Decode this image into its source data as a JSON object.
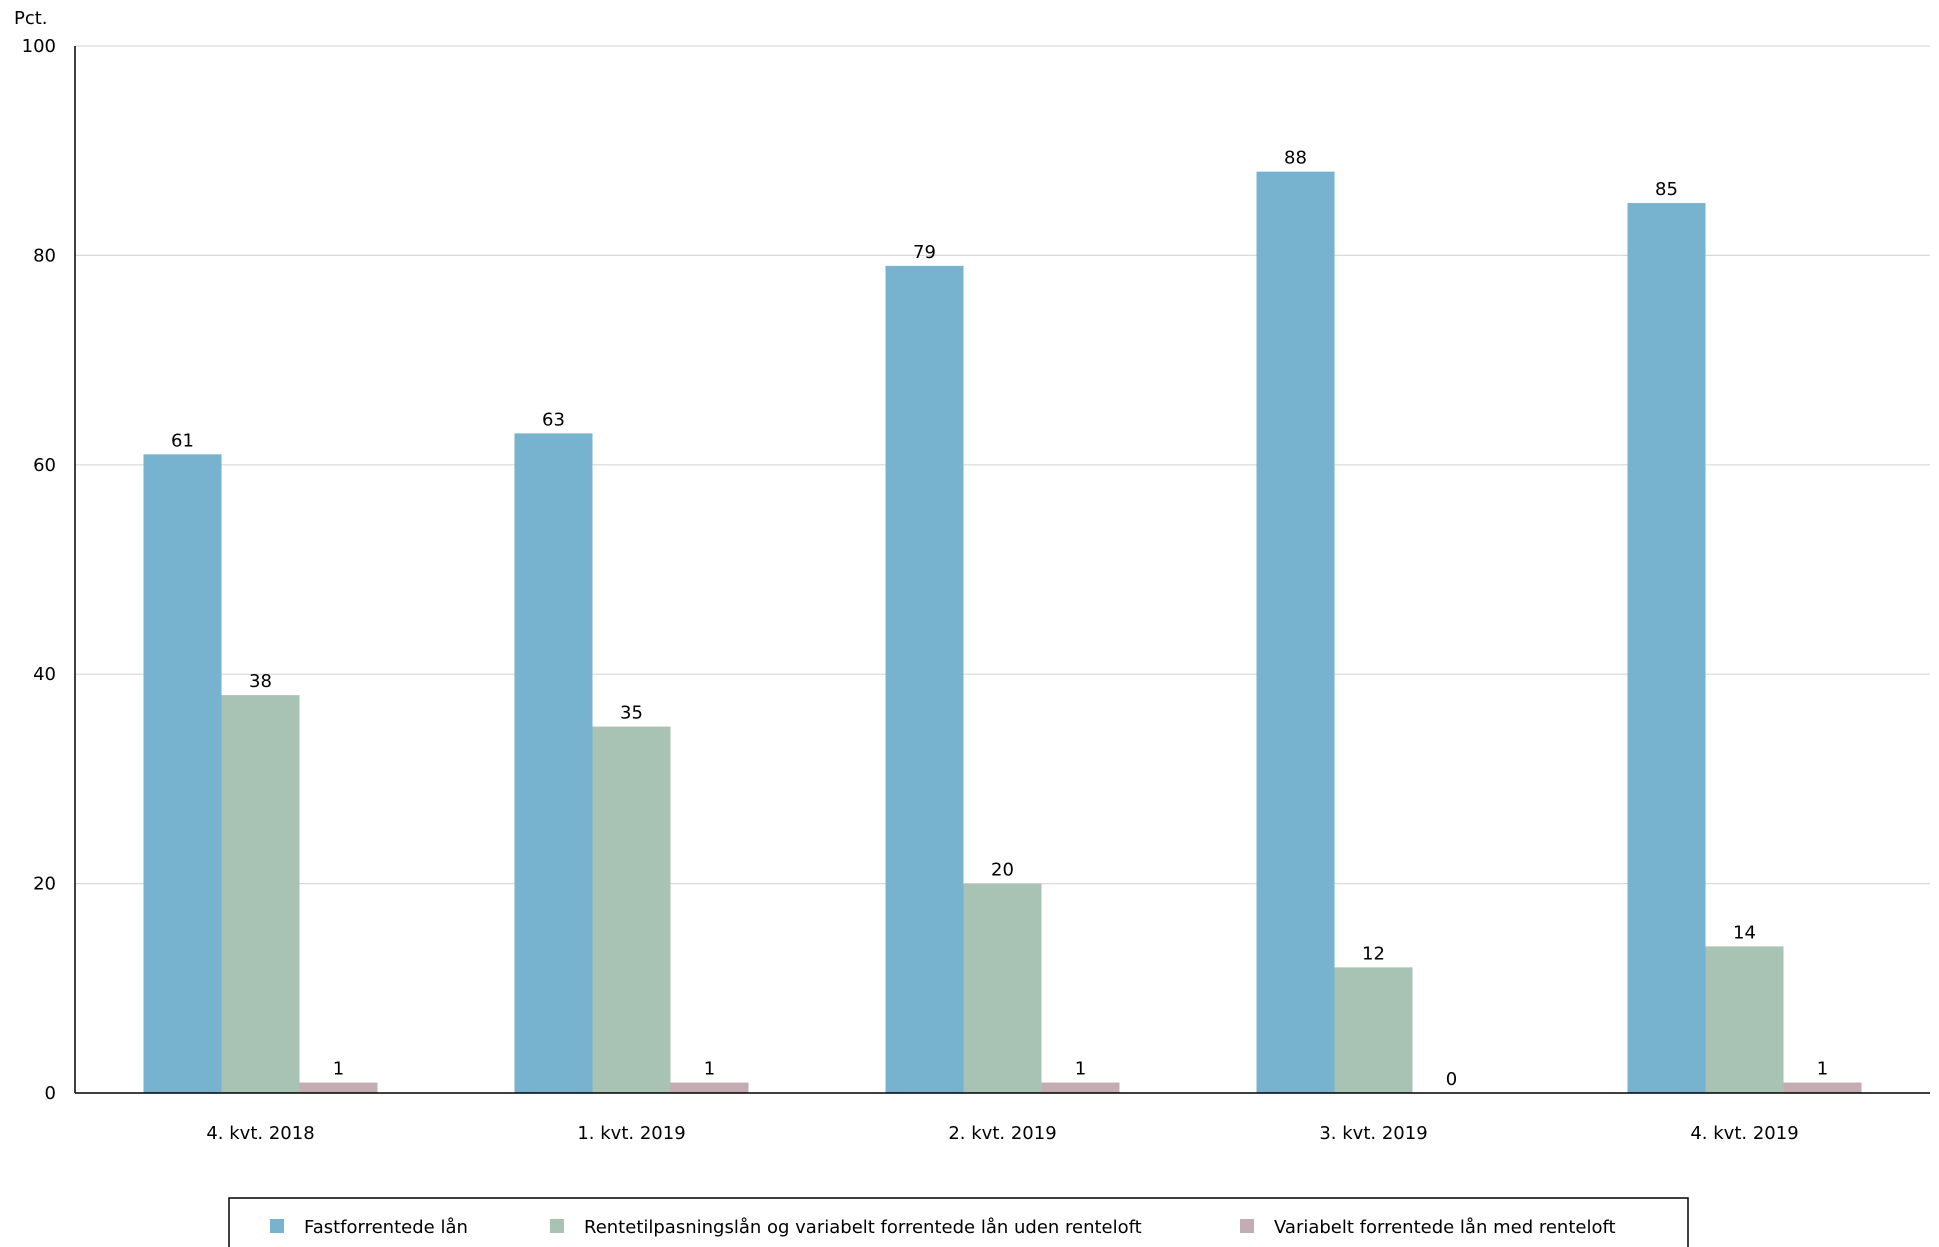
{
  "chart_data": {
    "type": "bar",
    "ylabel": "Pct.",
    "ylim": [
      0,
      100
    ],
    "yticks": [
      0,
      20,
      40,
      60,
      80,
      100
    ],
    "grid": true,
    "legend_position": "bottom",
    "categories": [
      "4. kvt. 2018",
      "1. kvt. 2019",
      "2. kvt. 2019",
      "3. kvt. 2019",
      "4. kvt. 2019"
    ],
    "series": [
      {
        "name": "Fastforrentede lån",
        "color": "#77b2cf",
        "values": [
          61,
          63,
          79,
          88,
          85
        ]
      },
      {
        "name": "Rentetilpasningslån og variabelt forrentede lån uden renteloft",
        "color": "#a8c2b3",
        "values": [
          38,
          35,
          20,
          12,
          14
        ]
      },
      {
        "name": "Variabelt forrentede lån med renteloft",
        "color": "#c4adb2",
        "values": [
          1,
          1,
          1,
          0,
          1
        ]
      }
    ]
  }
}
